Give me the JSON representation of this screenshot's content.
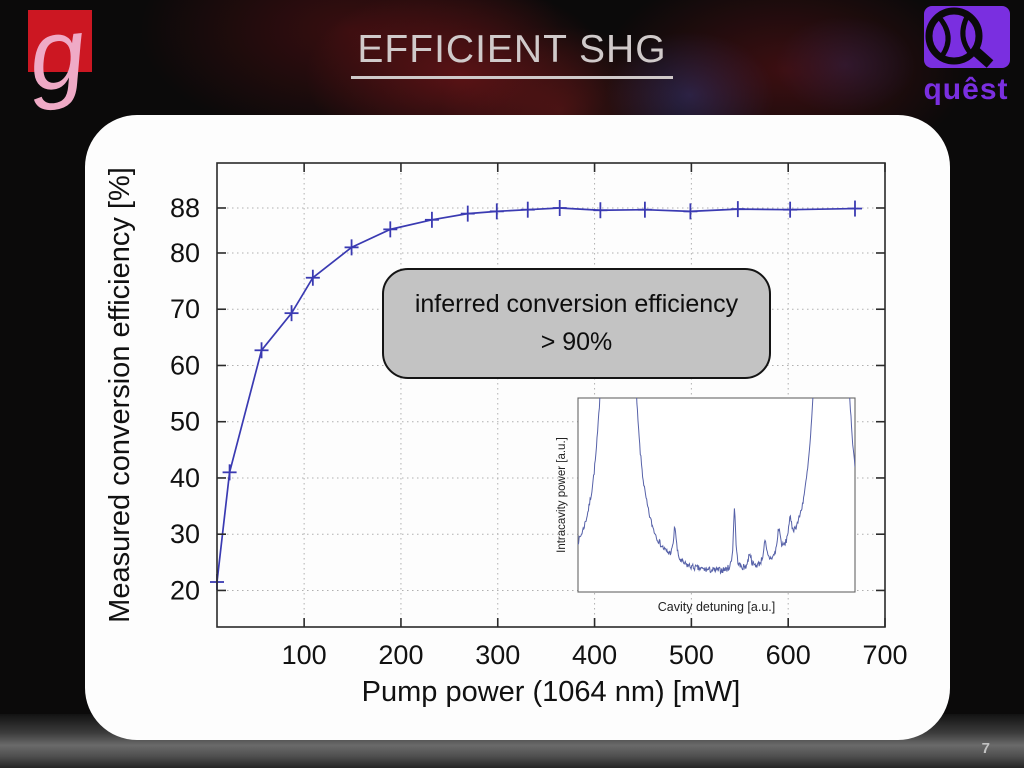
{
  "slide": {
    "title": "EFFICIENT SHG",
    "page_number": "7",
    "quest_wordmark": "quêst",
    "institute_glyph": "g"
  },
  "callout": {
    "line1": "inferred conversion efficiency",
    "line2": "> 90%"
  },
  "colors": {
    "curve_blue": "#3a3ab2",
    "inset_blue": "#5661a8",
    "callout_fill": "#c3c3c3",
    "logo_red": "#cc1722",
    "logo_pink": "#efaac6",
    "quest_purple": "#7a2fe0",
    "title_gray": "#d0caca",
    "grid_gray": "#b0b0b0",
    "axis_dark": "#2a2a2a"
  },
  "chart_data": [
    {
      "type": "line",
      "title": "",
      "xlabel": "Pump power (1064 nm) [mW]",
      "ylabel": "Measured conversion efficiency [%]",
      "xlim": [
        10,
        700
      ],
      "ylim": [
        13.5,
        96
      ],
      "xticks": [
        100,
        200,
        300,
        400,
        500,
        600,
        700
      ],
      "yticks": [
        20,
        30,
        40,
        50,
        60,
        70,
        80,
        88
      ],
      "grid": true,
      "legend": "none",
      "marker": "plus",
      "series": [
        {
          "name": "measured conversion efficiency",
          "x": [
            10,
            23,
            56,
            87,
            109,
            149,
            189,
            232,
            269,
            299,
            331,
            364,
            406,
            452,
            499,
            548,
            602,
            669
          ],
          "y": [
            21.5,
            41,
            62.7,
            69.3,
            75.6,
            81,
            84.2,
            85.9,
            87,
            87.4,
            87.7,
            88,
            87.6,
            87.7,
            87.4,
            87.8,
            87.7,
            87.9
          ]
        }
      ]
    },
    {
      "type": "line",
      "role": "inset",
      "xlabel": "Cavity detuning [a.u.]",
      "ylabel": "Intracavity power [a.u.]",
      "xlim": [
        0,
        1
      ],
      "ylim": [
        0,
        1
      ],
      "description": "cavity scan trace: two off-scale fundamental resonances with small intermediate peaks over a noisy baseline",
      "baseline": 0.05,
      "noise": 0.016,
      "seed": 7,
      "peaks": [
        {
          "x": 0.145,
          "h": 30,
          "w": 0.012
        },
        {
          "x": 0.915,
          "h": 30,
          "w": 0.012
        },
        {
          "x": 0.35,
          "h": 0.17,
          "w": 0.006
        },
        {
          "x": 0.565,
          "h": 0.32,
          "w": 0.005
        },
        {
          "x": 0.62,
          "h": 0.08,
          "w": 0.006
        },
        {
          "x": 0.675,
          "h": 0.11,
          "w": 0.007
        },
        {
          "x": 0.725,
          "h": 0.14,
          "w": 0.007
        },
        {
          "x": 0.765,
          "h": 0.12,
          "w": 0.008
        }
      ]
    }
  ]
}
